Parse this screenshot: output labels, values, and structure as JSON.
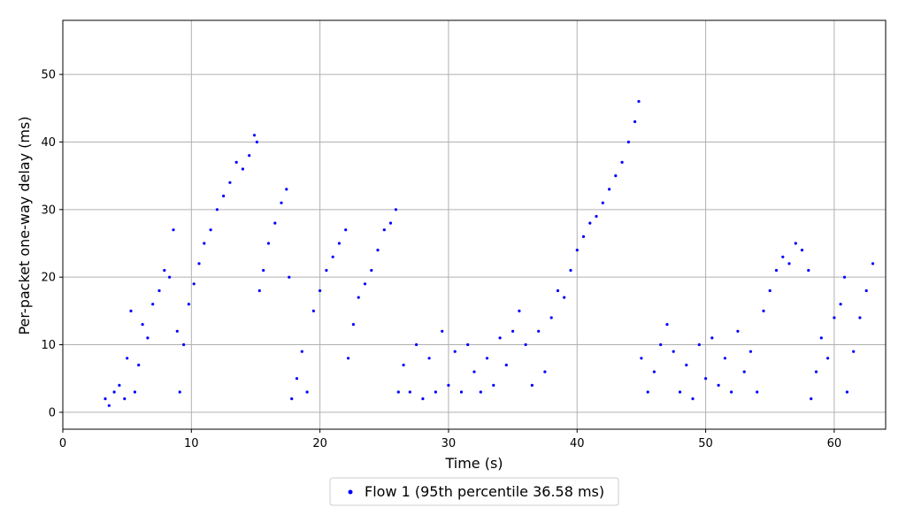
{
  "chart_data": {
    "type": "scatter",
    "title": "",
    "xlabel": "Time (s)",
    "ylabel": "Per-packet one-way delay (ms)",
    "xlim": [
      0,
      64
    ],
    "ylim": [
      -2.5,
      58
    ],
    "xticks": [
      0,
      10,
      20,
      30,
      40,
      50,
      60
    ],
    "yticks": [
      0,
      10,
      20,
      30,
      40,
      50
    ],
    "grid": true,
    "legend_position": "bottom-center",
    "series": [
      {
        "name": "Flow 1 (95th percentile 36.58 ms)",
        "color": "#0000ff",
        "points": [
          [
            3.3,
            2
          ],
          [
            3.6,
            1
          ],
          [
            4.0,
            3
          ],
          [
            4.4,
            4
          ],
          [
            4.8,
            2
          ],
          [
            5.0,
            8
          ],
          [
            5.3,
            15
          ],
          [
            5.6,
            3
          ],
          [
            5.9,
            7
          ],
          [
            6.2,
            13
          ],
          [
            6.6,
            11
          ],
          [
            7.0,
            16
          ],
          [
            7.5,
            18
          ],
          [
            7.9,
            21
          ],
          [
            8.3,
            20
          ],
          [
            8.6,
            27
          ],
          [
            8.9,
            12
          ],
          [
            9.1,
            3
          ],
          [
            9.4,
            10
          ],
          [
            9.8,
            16
          ],
          [
            10.2,
            19
          ],
          [
            10.6,
            22
          ],
          [
            11.0,
            25
          ],
          [
            11.5,
            27
          ],
          [
            12.0,
            30
          ],
          [
            12.5,
            32
          ],
          [
            13.0,
            34
          ],
          [
            13.5,
            37
          ],
          [
            14.0,
            36
          ],
          [
            14.5,
            38
          ],
          [
            14.9,
            41
          ],
          [
            15.1,
            40
          ],
          [
            15.3,
            18
          ],
          [
            15.6,
            21
          ],
          [
            16.0,
            25
          ],
          [
            16.5,
            28
          ],
          [
            17.0,
            31
          ],
          [
            17.4,
            33
          ],
          [
            17.6,
            20
          ],
          [
            17.8,
            2
          ],
          [
            18.2,
            5
          ],
          [
            18.6,
            9
          ],
          [
            19.0,
            3
          ],
          [
            19.5,
            15
          ],
          [
            20.0,
            18
          ],
          [
            20.5,
            21
          ],
          [
            21.0,
            23
          ],
          [
            21.5,
            25
          ],
          [
            22.0,
            27
          ],
          [
            22.2,
            8
          ],
          [
            22.6,
            13
          ],
          [
            23.0,
            17
          ],
          [
            23.5,
            19
          ],
          [
            24.0,
            21
          ],
          [
            24.5,
            24
          ],
          [
            25.0,
            27
          ],
          [
            25.5,
            28
          ],
          [
            25.9,
            30
          ],
          [
            26.1,
            3
          ],
          [
            26.5,
            7
          ],
          [
            27.0,
            3
          ],
          [
            27.5,
            10
          ],
          [
            28.0,
            2
          ],
          [
            28.5,
            8
          ],
          [
            29.0,
            3
          ],
          [
            29.5,
            12
          ],
          [
            30.0,
            4
          ],
          [
            30.5,
            9
          ],
          [
            31.0,
            3
          ],
          [
            31.5,
            10
          ],
          [
            32.0,
            6
          ],
          [
            32.5,
            3
          ],
          [
            33.0,
            8
          ],
          [
            33.5,
            4
          ],
          [
            34.0,
            11
          ],
          [
            34.5,
            7
          ],
          [
            35.0,
            12
          ],
          [
            35.5,
            15
          ],
          [
            36.0,
            10
          ],
          [
            36.5,
            4
          ],
          [
            37.0,
            12
          ],
          [
            37.5,
            6
          ],
          [
            38.0,
            14
          ],
          [
            38.5,
            18
          ],
          [
            39.0,
            17
          ],
          [
            39.5,
            21
          ],
          [
            40.0,
            24
          ],
          [
            40.5,
            26
          ],
          [
            41.0,
            28
          ],
          [
            41.5,
            29
          ],
          [
            42.0,
            31
          ],
          [
            42.5,
            33
          ],
          [
            43.0,
            35
          ],
          [
            43.5,
            37
          ],
          [
            44.0,
            40
          ],
          [
            44.5,
            43
          ],
          [
            44.8,
            46
          ],
          [
            45.0,
            8
          ],
          [
            45.5,
            3
          ],
          [
            46.0,
            6
          ],
          [
            46.5,
            10
          ],
          [
            47.0,
            13
          ],
          [
            47.5,
            9
          ],
          [
            48.0,
            3
          ],
          [
            48.5,
            7
          ],
          [
            49.0,
            2
          ],
          [
            49.5,
            10
          ],
          [
            50.0,
            5
          ],
          [
            50.5,
            11
          ],
          [
            51.0,
            4
          ],
          [
            51.5,
            8
          ],
          [
            52.0,
            3
          ],
          [
            52.5,
            12
          ],
          [
            53.0,
            6
          ],
          [
            53.5,
            9
          ],
          [
            54.0,
            3
          ],
          [
            54.5,
            15
          ],
          [
            55.0,
            18
          ],
          [
            55.5,
            21
          ],
          [
            56.0,
            23
          ],
          [
            56.5,
            22
          ],
          [
            57.0,
            25
          ],
          [
            57.5,
            24
          ],
          [
            58.0,
            21
          ],
          [
            58.2,
            2
          ],
          [
            58.6,
            6
          ],
          [
            59.0,
            11
          ],
          [
            59.5,
            8
          ],
          [
            60.0,
            14
          ],
          [
            60.5,
            16
          ],
          [
            60.8,
            20
          ],
          [
            61.0,
            3
          ],
          [
            61.5,
            9
          ],
          [
            62.0,
            14
          ],
          [
            62.5,
            18
          ],
          [
            63.0,
            22
          ]
        ]
      }
    ]
  }
}
